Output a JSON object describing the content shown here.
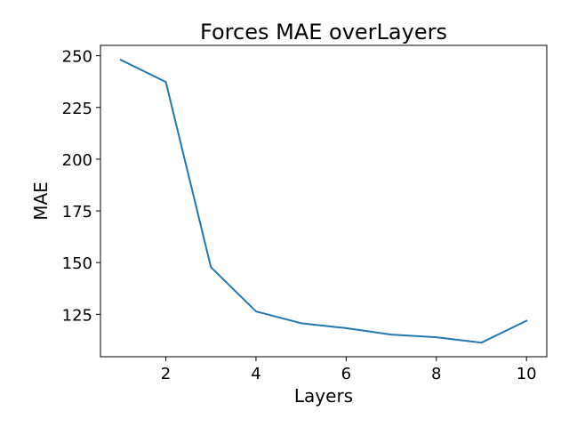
{
  "chart_data": {
    "type": "line",
    "title": "Forces MAE overLayers",
    "xlabel": "Layers",
    "ylabel": "MAE",
    "xlim": [
      0.55,
      10.45
    ],
    "ylim": [
      104.5,
      255.0
    ],
    "xticks": [
      2,
      4,
      6,
      8,
      10
    ],
    "yticks": [
      125,
      150,
      175,
      200,
      225,
      250
    ],
    "grid": false,
    "series": [
      {
        "color": "#1f77b4",
        "x": [
          1,
          2,
          3,
          4,
          5,
          6,
          7,
          8,
          9,
          10
        ],
        "y": [
          248.0,
          237.3,
          147.8,
          126.4,
          120.7,
          118.3,
          115.2,
          113.9,
          111.3,
          121.9
        ]
      }
    ]
  }
}
